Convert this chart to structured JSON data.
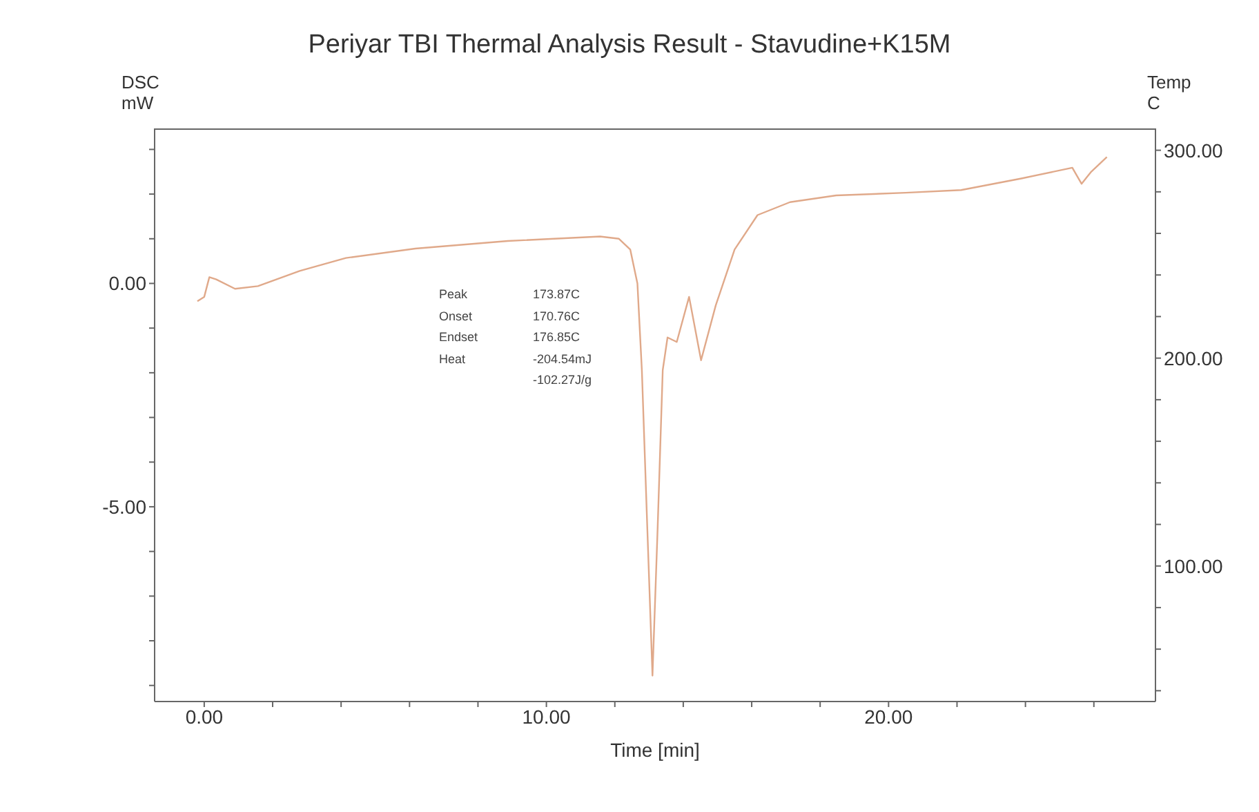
{
  "chart_data": {
    "type": "line",
    "title": "Periyar TBI Thermal Analysis Result - Stavudine+K15M",
    "xlabel": "Time  [min]",
    "ylabel": "DSC mW",
    "y2label": "Temp C",
    "annotations": [
      "Peak  173.87C",
      "Onset  170.76C",
      "Endset  176.85C",
      "Heat  -204.54mJ",
      "  -102.27J/g"
    ],
    "series": [
      {
        "color": "#e0a98a",
        "x": [
          -0.2,
          0.0,
          0.15,
          0.35,
          0.9,
          1.57,
          2.79,
          4.14,
          6.17,
          8.87,
          11.57,
          12.12,
          12.45,
          12.66,
          12.79,
          12.95,
          13.1,
          13.25,
          13.4,
          13.54,
          13.81,
          14.17,
          14.52,
          14.95,
          15.5,
          16.17,
          17.12,
          18.47,
          20.5,
          22.12,
          23.88,
          25.37,
          25.64,
          25.91,
          26.38
        ],
        "values": [
          -0.4,
          -0.3,
          0.14,
          0.09,
          -0.12,
          -0.06,
          0.28,
          0.57,
          0.78,
          0.95,
          1.05,
          1.0,
          0.76,
          0,
          -1.94,
          -5.5,
          -8.78,
          -5.5,
          -1.94,
          -1.21,
          -1.31,
          -0.3,
          -1.72,
          -0.49,
          0.76,
          1.53,
          1.82,
          1.97,
          2.03,
          2.09,
          2.35,
          2.59,
          2.23,
          2.49,
          2.83
        ]
      }
    ],
    "xlim": [
      -1.45,
      27.8
    ],
    "xticks": [
      {
        "value": 0,
        "label": "0.00"
      },
      {
        "value": 2,
        "label": null
      },
      {
        "value": 4,
        "label": null
      },
      {
        "value": 6,
        "label": null
      },
      {
        "value": 8,
        "label": null
      },
      {
        "value": 10,
        "label": "10.00"
      },
      {
        "value": 12,
        "label": null
      },
      {
        "value": 14,
        "label": null
      },
      {
        "value": 16,
        "label": null
      },
      {
        "value": 18,
        "label": null
      },
      {
        "value": 20,
        "label": "20.00"
      },
      {
        "value": 22,
        "label": null
      },
      {
        "value": 24,
        "label": null
      },
      {
        "value": 26,
        "label": null
      }
    ],
    "ylim": [
      -9.36,
      3.47
    ],
    "yticks": [
      {
        "value": -9,
        "label": null
      },
      {
        "value": -8,
        "label": null
      },
      {
        "value": -7,
        "label": null
      },
      {
        "value": -6,
        "label": null
      },
      {
        "value": -5,
        "label": "-5.00"
      },
      {
        "value": -4,
        "label": null
      },
      {
        "value": -3,
        "label": null
      },
      {
        "value": -2,
        "label": null
      },
      {
        "value": -1,
        "label": null
      },
      {
        "value": 0,
        "label": "0.00"
      },
      {
        "value": 1,
        "label": null
      },
      {
        "value": 2,
        "label": null
      },
      {
        "value": 3,
        "label": null
      }
    ],
    "y2lim": [
      34.8,
      310.5
    ],
    "y2ticks": [
      {
        "value": 40,
        "label": null
      },
      {
        "value": 60,
        "label": null
      },
      {
        "value": 80,
        "label": null
      },
      {
        "value": 100,
        "label": "100.00"
      },
      {
        "value": 120,
        "label": null
      },
      {
        "value": 140,
        "label": null
      },
      {
        "value": 160,
        "label": null
      },
      {
        "value": 180,
        "label": null
      },
      {
        "value": 200,
        "label": "200.00"
      },
      {
        "value": 220,
        "label": null
      },
      {
        "value": 240,
        "label": null
      },
      {
        "value": 260,
        "label": null
      },
      {
        "value": 280,
        "label": null
      },
      {
        "value": 300,
        "label": "300.00"
      }
    ],
    "grid": false,
    "legend": false,
    "marker": "none",
    "line_style": "solid"
  }
}
